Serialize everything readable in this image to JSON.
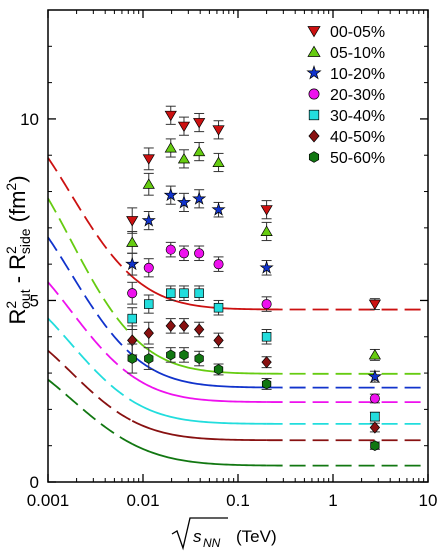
{
  "chart_data": {
    "type": "scatter",
    "title": "",
    "xlabel": "(TeV)",
    "xlabel_symbol": "√s",
    "xlabel_subscript": "NN",
    "ylabel": {
      "base1": "R",
      "sup1": "2",
      "sub1": "out",
      "minus": " - ",
      "base2": "R",
      "sup2": "2",
      "sub2": "side",
      "unit": " (fm",
      "unit_sup": "2",
      "unit_close": ")"
    },
    "x_scale": "log",
    "xlim": [
      0.001,
      10
    ],
    "ylim": [
      0,
      13
    ],
    "x_ticks": [
      0.001,
      0.01,
      0.1,
      1,
      10
    ],
    "x_tick_labels": [
      "0.001",
      "0.01",
      "0.1",
      "1",
      "10"
    ],
    "y_ticks": [
      0,
      5,
      10
    ],
    "y_tick_labels": [
      "0",
      "5",
      "10"
    ],
    "legend_position": "top-right",
    "grid": false,
    "series": [
      {
        "name": "00-05%",
        "color": "#cc1111",
        "marker": "triangle-down",
        "x": [
          0.0077,
          0.0115,
          0.0196,
          0.027,
          0.039,
          0.0624,
          0.2,
          2.76
        ],
        "y": [
          7.2,
          8.9,
          10.1,
          9.8,
          9.9,
          9.7,
          7.5,
          4.9
        ],
        "err": [
          0.35,
          0.3,
          0.25,
          0.25,
          0.25,
          0.25,
          0.25,
          0.15
        ],
        "curve": {
          "a": 10.0,
          "mu": 3.5,
          "s": 0.74,
          "base": 4.75
        }
      },
      {
        "name": "05-10%",
        "color": "#66cc11",
        "marker": "triangle-up",
        "x": [
          0.0077,
          0.0115,
          0.0196,
          0.027,
          0.039,
          0.0624,
          0.2,
          2.76
        ],
        "y": [
          6.6,
          8.2,
          9.2,
          8.9,
          9.1,
          8.8,
          6.9,
          3.5
        ],
        "err": [
          0.3,
          0.3,
          0.25,
          0.25,
          0.25,
          0.25,
          0.25,
          0.15
        ],
        "curve": {
          "a": 9.05,
          "mu": 3.5,
          "s": 0.74,
          "base": 2.98
        }
      },
      {
        "name": "10-20%",
        "color": "#1133cc",
        "marker": "star",
        "x": [
          0.0077,
          0.0115,
          0.0196,
          0.027,
          0.039,
          0.0624,
          0.2,
          2.76
        ],
        "y": [
          6.0,
          7.2,
          7.9,
          7.7,
          7.8,
          7.5,
          5.9,
          2.9
        ],
        "err": [
          0.3,
          0.25,
          0.25,
          0.25,
          0.25,
          0.2,
          0.2,
          0.15
        ],
        "curve": {
          "a": 7.8,
          "mu": 3.5,
          "s": 0.74,
          "base": 2.6
        }
      },
      {
        "name": "20-30%",
        "color": "#ee11ee",
        "marker": "circle",
        "x": [
          0.0077,
          0.0115,
          0.0196,
          0.027,
          0.039,
          0.0624,
          0.2,
          2.76
        ],
        "y": [
          5.2,
          5.9,
          6.4,
          6.3,
          6.3,
          6.0,
          4.9,
          2.3
        ],
        "err": [
          0.3,
          0.25,
          0.2,
          0.2,
          0.2,
          0.2,
          0.2,
          0.12
        ],
        "curve": {
          "a": 6.35,
          "mu": 3.5,
          "s": 0.74,
          "base": 2.2
        }
      },
      {
        "name": "30-40%",
        "color": "#22dddd",
        "marker": "square",
        "x": [
          0.0077,
          0.0115,
          0.0196,
          0.027,
          0.039,
          0.0624,
          0.2,
          2.76
        ],
        "y": [
          4.5,
          4.9,
          5.2,
          5.2,
          5.2,
          4.8,
          4.0,
          1.8
        ],
        "err": [
          0.3,
          0.25,
          0.2,
          0.2,
          0.2,
          0.2,
          0.2,
          0.12
        ],
        "curve": {
          "a": 5.25,
          "mu": 3.5,
          "s": 0.74,
          "base": 1.6
        }
      },
      {
        "name": "40-50%",
        "color": "#881111",
        "marker": "diamond",
        "x": [
          0.0077,
          0.0115,
          0.0196,
          0.027,
          0.039,
          0.0624,
          0.2,
          2.76
        ],
        "y": [
          3.9,
          4.1,
          4.3,
          4.3,
          4.2,
          3.9,
          3.3,
          1.5
        ],
        "err": [
          0.4,
          0.3,
          0.2,
          0.2,
          0.2,
          0.2,
          0.15,
          0.12
        ],
        "curve": {
          "a": 4.25,
          "mu": 3.5,
          "s": 0.74,
          "base": 1.15
        }
      },
      {
        "name": "50-60%",
        "color": "#117711",
        "marker": "hexagon",
        "x": [
          0.0077,
          0.0115,
          0.0196,
          0.027,
          0.039,
          0.0624,
          0.2,
          2.76
        ],
        "y": [
          3.4,
          3.4,
          3.5,
          3.5,
          3.4,
          3.1,
          2.7,
          1.0
        ],
        "err": [
          0.4,
          0.3,
          0.2,
          0.2,
          0.2,
          0.15,
          0.15,
          0.1
        ],
        "curve": {
          "a": 3.45,
          "mu": 3.55,
          "s": 0.8,
          "base": 0.45
        }
      }
    ]
  }
}
